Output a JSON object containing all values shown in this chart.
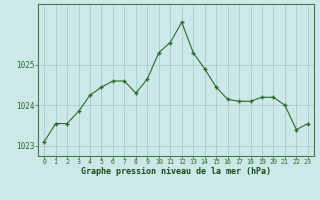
{
  "x": [
    0,
    1,
    2,
    3,
    4,
    5,
    6,
    7,
    8,
    9,
    10,
    11,
    12,
    13,
    14,
    15,
    16,
    17,
    18,
    19,
    20,
    21,
    22,
    23
  ],
  "y": [
    1023.1,
    1023.55,
    1023.55,
    1023.85,
    1024.25,
    1024.45,
    1024.6,
    1024.6,
    1024.3,
    1024.65,
    1025.3,
    1025.55,
    1026.05,
    1025.3,
    1024.9,
    1024.45,
    1024.15,
    1024.1,
    1024.1,
    1024.2,
    1024.2,
    1024.0,
    1023.4,
    1023.55
  ],
  "ylim": [
    1022.75,
    1026.5
  ],
  "yticks": [
    1023,
    1024,
    1025
  ],
  "xticks": [
    0,
    1,
    2,
    3,
    4,
    5,
    6,
    7,
    8,
    9,
    10,
    11,
    12,
    13,
    14,
    15,
    16,
    17,
    18,
    19,
    20,
    21,
    22,
    23
  ],
  "line_color": "#2d6a2d",
  "marker_color": "#2d6a2d",
  "bg_color": "#cce8e8",
  "grid_color": "#aacccc",
  "xlabel": "Graphe pression niveau de la mer (hPa)",
  "xlabel_color": "#1a4a1a",
  "tick_color": "#2d6a2d",
  "border_color": "#4a7a4a"
}
